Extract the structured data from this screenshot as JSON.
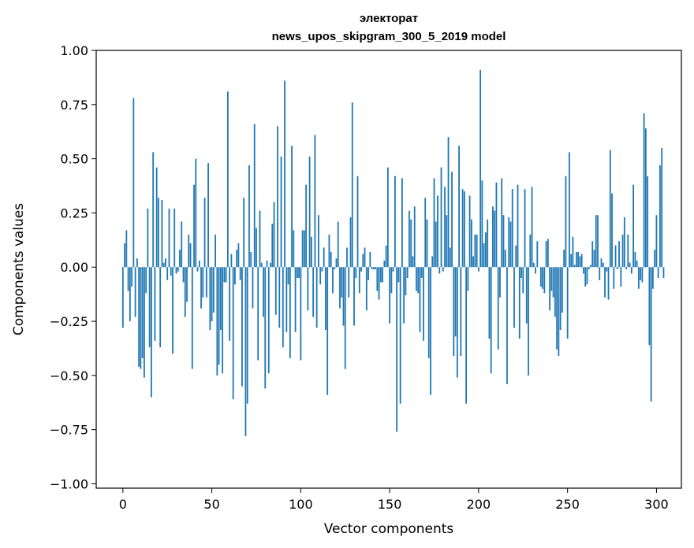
{
  "chart_data": {
    "type": "bar",
    "title": "электорат",
    "subtitle": "news_upos_skipgram_300_5_2019 model",
    "xlabel": "Vector components",
    "ylabel": "Components values",
    "xlim": [
      -15,
      314
    ],
    "ylim": [
      -1.02,
      1.0
    ],
    "xticks": [
      0,
      50,
      100,
      150,
      200,
      250,
      300
    ],
    "yticks": [
      -1.0,
      -0.75,
      -0.5,
      -0.25,
      0.0,
      0.25,
      0.5,
      0.75,
      1.0
    ],
    "xtick_labels": [
      "0",
      "50",
      "100",
      "150",
      "200",
      "250",
      "300"
    ],
    "ytick_labels": [
      "−1.00",
      "−0.75",
      "−0.50",
      "−0.25",
      "0.00",
      "0.25",
      "0.50",
      "0.75",
      "1.00"
    ],
    "grid": false,
    "bar_color": "#1f77b4",
    "values": [
      -0.28,
      0.11,
      0.17,
      -0.11,
      -0.25,
      -0.09,
      0.78,
      -0.23,
      0.04,
      -0.46,
      -0.47,
      -0.42,
      -0.51,
      -0.12,
      0.27,
      -0.37,
      -0.6,
      0.53,
      -0.34,
      0.46,
      0.32,
      -0.37,
      0.31,
      0.02,
      0.04,
      -0.06,
      0.27,
      -0.04,
      -0.4,
      0.27,
      -0.03,
      -0.02,
      0.08,
      0.21,
      -0.07,
      -0.23,
      -0.16,
      0.15,
      0.11,
      -0.47,
      0.38,
      0.5,
      -0.02,
      0.03,
      -0.19,
      -0.14,
      0.32,
      -0.14,
      0.48,
      -0.29,
      -0.25,
      -0.21,
      0.15,
      -0.5,
      -0.45,
      -0.29,
      -0.49,
      -0.07,
      -0.07,
      0.81,
      -0.34,
      0.06,
      -0.61,
      -0.08,
      0.08,
      0.11,
      -0.06,
      -0.55,
      0.32,
      -0.78,
      -0.63,
      0.47,
      0.07,
      -0.19,
      0.66,
      0.18,
      -0.43,
      0.26,
      0.02,
      -0.23,
      -0.56,
      0.03,
      -0.49,
      0.02,
      0.2,
      0.3,
      -0.22,
      0.65,
      -0.28,
      0.51,
      -0.37,
      0.86,
      -0.3,
      -0.08,
      -0.42,
      0.56,
      0.17,
      -0.3,
      -0.05,
      -0.05,
      -0.43,
      0.17,
      0.17,
      0.38,
      -0.2,
      0.51,
      0.14,
      -0.23,
      0.61,
      -0.28,
      0.24,
      -0.08,
      -0.02,
      0.09,
      -0.29,
      -0.59,
      0.15,
      0.07,
      -0.12,
      -0.01,
      0.04,
      0.21,
      -0.19,
      -0.14,
      -0.27,
      -0.47,
      0.09,
      -0.14,
      0.23,
      0.76,
      -0.27,
      -0.05,
      0.42,
      -0.12,
      -0.02,
      0.06,
      0.09,
      -0.2,
      -0.06,
      0.07,
      -0.01,
      -0.01,
      -0.01,
      -0.11,
      -0.15,
      -0.07,
      -0.07,
      0.03,
      0.1,
      0.46,
      -0.26,
      -0.12,
      -0.02,
      0.42,
      -0.76,
      -0.07,
      -0.63,
      0.41,
      -0.26,
      -0.13,
      -0.05,
      0.26,
      0.22,
      0.05,
      0.28,
      -0.11,
      -0.12,
      -0.3,
      -0.05,
      -0.34,
      0.32,
      0.22,
      -0.42,
      -0.59,
      0.05,
      0.41,
      0.21,
      0.33,
      -0.03,
      0.46,
      -0.02,
      0.37,
      0.24,
      0.6,
      0.09,
      0.44,
      -0.41,
      -0.32,
      -0.51,
      0.56,
      -0.41,
      0.36,
      0.35,
      -0.63,
      -0.11,
      0.33,
      0.22,
      0.05,
      0.15,
      0.15,
      -0.02,
      0.91,
      0.4,
      0.11,
      0.16,
      0.22,
      -0.33,
      -0.49,
      0.28,
      0.26,
      0.39,
      -0.38,
      -0.14,
      0.41,
      0.24,
      0.08,
      -0.54,
      0.23,
      0.21,
      0.36,
      -0.28,
      0.1,
      0.38,
      -0.33,
      -0.05,
      -0.12,
      0.36,
      -0.26,
      -0.5,
      0.15,
      0.37,
      0.02,
      -0.03,
      0.12,
      0.0,
      -0.09,
      -0.1,
      -0.12,
      0.12,
      0.13,
      -0.2,
      -0.11,
      -0.14,
      -0.23,
      -0.38,
      -0.41,
      -0.29,
      -0.21,
      0.08,
      0.42,
      -0.33,
      0.53,
      0.06,
      0.14,
      0.01,
      0.07,
      0.07,
      0.05,
      0.06,
      -0.03,
      -0.09,
      -0.08,
      -0.01,
      0.01,
      0.12,
      0.08,
      0.24,
      0.24,
      -0.06,
      0.04,
      0.02,
      -0.14,
      -0.02,
      -0.15,
      0.54,
      0.34,
      -0.1,
      0.1,
      -0.01,
      0.12,
      -0.09,
      0.15,
      0.23,
      -0.01,
      0.15,
      0.02,
      -0.03,
      0.38,
      0.07,
      0.03,
      -0.1,
      -0.06,
      -0.07,
      0.71,
      0.64,
      0.42,
      -0.36,
      -0.62,
      -0.1,
      0.08,
      0.24,
      -0.05,
      0.47,
      0.55,
      -0.05
    ]
  }
}
